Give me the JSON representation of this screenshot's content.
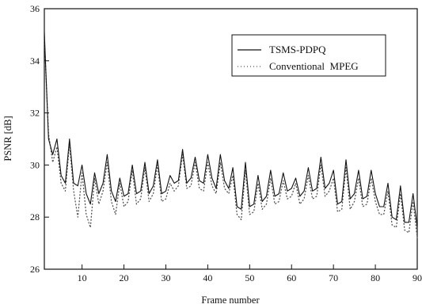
{
  "chart_data": {
    "type": "line",
    "xlabel": "Frame number",
    "ylabel": "PSNR [dB]",
    "xlim": [
      1,
      90
    ],
    "ylim": [
      26,
      36
    ],
    "xticks": [
      10,
      20,
      30,
      40,
      50,
      60,
      70,
      80,
      90
    ],
    "yticks": [
      26,
      28,
      30,
      32,
      34,
      36
    ],
    "grid": false,
    "legend_position": "top-right",
    "series": [
      {
        "name": "TSMS-PDPQ",
        "style": "solid",
        "color": "#111111",
        "x": [
          1,
          2,
          3,
          4,
          5,
          6,
          7,
          8,
          9,
          10,
          11,
          12,
          13,
          14,
          15,
          16,
          17,
          18,
          19,
          20,
          21,
          22,
          23,
          24,
          25,
          26,
          27,
          28,
          29,
          30,
          31,
          32,
          33,
          34,
          35,
          36,
          37,
          38,
          39,
          40,
          41,
          42,
          43,
          44,
          45,
          46,
          47,
          48,
          49,
          50,
          51,
          52,
          53,
          54,
          55,
          56,
          57,
          58,
          59,
          60,
          61,
          62,
          63,
          64,
          65,
          66,
          67,
          68,
          69,
          70,
          71,
          72,
          73,
          74,
          75,
          76,
          77,
          78,
          79,
          80,
          81,
          82,
          83,
          84,
          85,
          86,
          87,
          88,
          89,
          90
        ],
        "values": [
          35.1,
          31.0,
          30.4,
          31.0,
          29.6,
          29.3,
          31.0,
          29.3,
          29.2,
          30.0,
          28.9,
          28.5,
          29.7,
          28.9,
          29.3,
          30.4,
          29.0,
          28.6,
          29.5,
          28.8,
          28.9,
          30.0,
          28.9,
          29.0,
          30.1,
          28.9,
          29.2,
          30.2,
          28.9,
          29.0,
          29.6,
          29.3,
          29.4,
          30.6,
          29.3,
          29.5,
          30.3,
          29.4,
          29.3,
          30.4,
          29.5,
          29.1,
          30.4,
          29.4,
          29.1,
          29.9,
          28.4,
          28.3,
          30.1,
          28.4,
          28.5,
          29.6,
          28.6,
          28.8,
          29.8,
          28.8,
          28.9,
          29.7,
          29.0,
          29.1,
          29.5,
          28.8,
          29.0,
          29.9,
          29.0,
          29.1,
          30.3,
          29.1,
          29.3,
          29.8,
          28.5,
          28.6,
          30.2,
          28.7,
          28.9,
          29.8,
          28.7,
          28.8,
          29.8,
          28.9,
          28.4,
          28.4,
          29.3,
          28.0,
          27.9,
          29.2,
          27.8,
          27.8,
          28.9,
          27.6
        ]
      },
      {
        "name": "Conventional  MPEG",
        "style": "dotted",
        "color": "#555555",
        "x": [
          1,
          2,
          3,
          4,
          5,
          6,
          7,
          8,
          9,
          10,
          11,
          12,
          13,
          14,
          15,
          16,
          17,
          18,
          19,
          20,
          21,
          22,
          23,
          24,
          25,
          26,
          27,
          28,
          29,
          30,
          31,
          32,
          33,
          34,
          35,
          36,
          37,
          38,
          39,
          40,
          41,
          42,
          43,
          44,
          45,
          46,
          47,
          48,
          49,
          50,
          51,
          52,
          53,
          54,
          55,
          56,
          57,
          58,
          59,
          60,
          61,
          62,
          63,
          64,
          65,
          66,
          67,
          68,
          69,
          70,
          71,
          72,
          73,
          74,
          75,
          76,
          77,
          78,
          79,
          80,
          81,
          82,
          83,
          84,
          85,
          86,
          87,
          88,
          89,
          90
        ],
        "values": [
          34.9,
          31.2,
          30.1,
          30.7,
          29.3,
          29.0,
          30.8,
          29.0,
          28.0,
          29.7,
          28.1,
          27.6,
          29.5,
          28.5,
          29.0,
          30.1,
          28.6,
          28.1,
          29.3,
          28.4,
          28.6,
          29.8,
          28.5,
          28.7,
          29.9,
          28.6,
          28.9,
          30.0,
          28.6,
          28.7,
          29.3,
          29.0,
          29.2,
          30.4,
          29.1,
          29.2,
          30.1,
          29.1,
          29.0,
          30.1,
          29.2,
          28.9,
          30.1,
          29.1,
          28.9,
          29.6,
          28.1,
          27.9,
          29.8,
          28.1,
          28.2,
          29.3,
          28.3,
          28.5,
          29.5,
          28.5,
          28.6,
          29.4,
          28.7,
          28.8,
          29.3,
          28.5,
          28.7,
          29.6,
          28.7,
          28.8,
          30.0,
          28.8,
          29.0,
          29.5,
          28.2,
          28.3,
          29.9,
          28.3,
          28.6,
          29.5,
          28.4,
          28.5,
          29.5,
          28.6,
          28.1,
          28.1,
          29.0,
          27.7,
          27.6,
          28.9,
          27.5,
          27.4,
          28.6,
          27.2
        ]
      }
    ]
  }
}
